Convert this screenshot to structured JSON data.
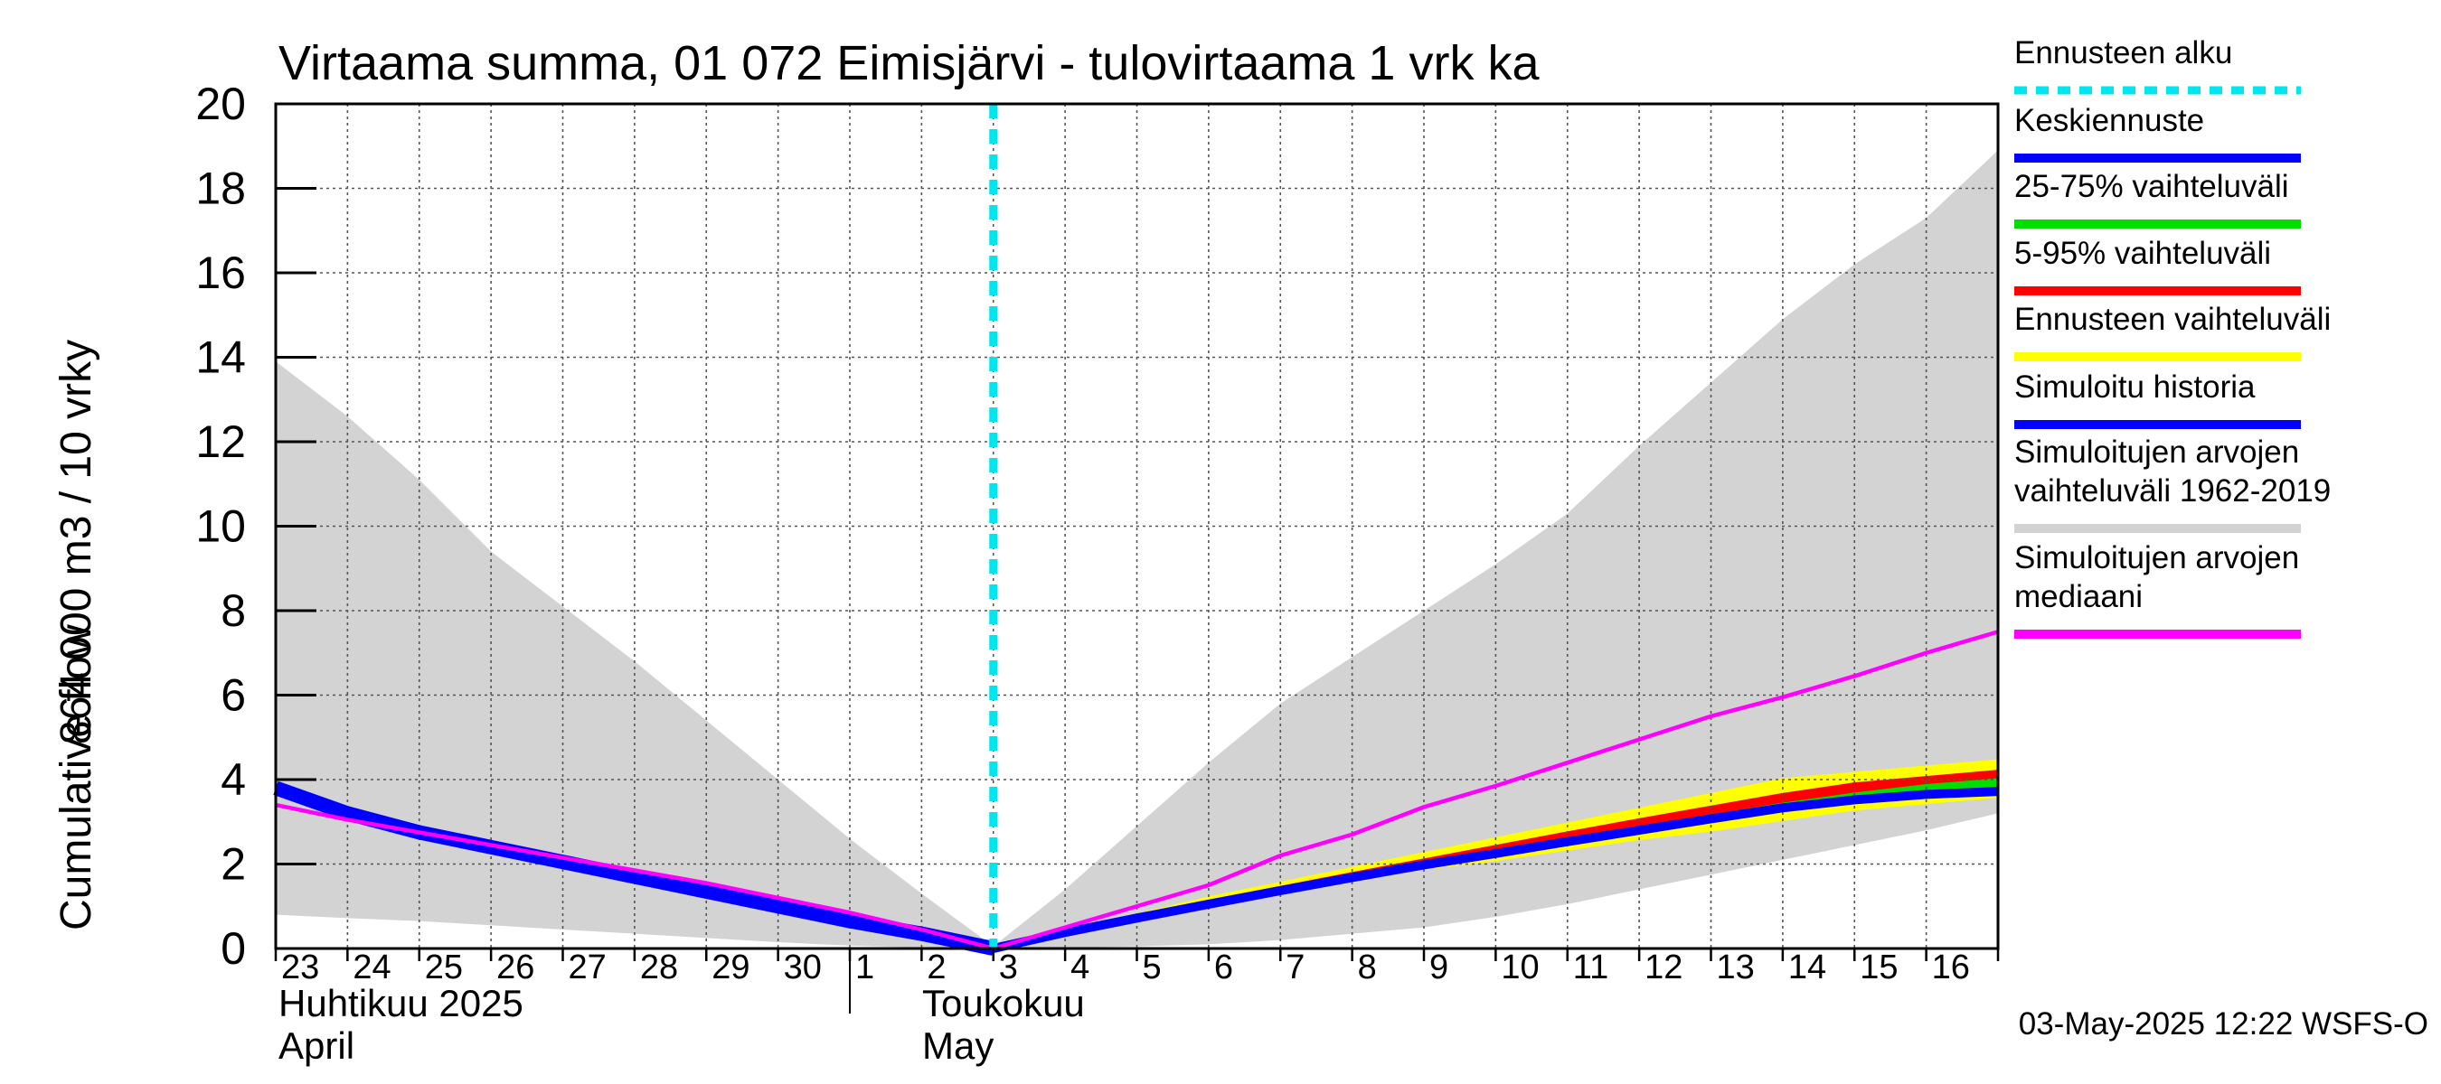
{
  "chart_data": {
    "type": "line",
    "title": "Virtaama summa, 01 072 Eimisjärvi - tulovirtaama 1 vrk ka",
    "ylabel_fi": "864 000 m3 / 10 vrky",
    "ylabel_en": "Cumulative flow",
    "ylim": [
      0,
      20
    ],
    "yticks": [
      0,
      2,
      4,
      6,
      8,
      10,
      12,
      14,
      16,
      18,
      20
    ],
    "xlim": [
      0,
      24
    ],
    "x_tick_labels": [
      "23",
      "24",
      "25",
      "26",
      "27",
      "28",
      "29",
      "30",
      "1",
      "2",
      "3",
      "4",
      "5",
      "6",
      "7",
      "8",
      "9",
      "10",
      "11",
      "12",
      "13",
      "14",
      "15",
      "16"
    ],
    "month_labels": [
      {
        "fi": "Huhtikuu  2025",
        "en": "April"
      },
      {
        "fi": "Toukokuu",
        "en": "May"
      }
    ],
    "forecast_start_x": 10,
    "grid": true,
    "timestamp": "03-May-2025 12:22 WSFS-O",
    "legend": [
      {
        "label": "Ennusteen alku",
        "color": "#00e5ee",
        "style": "dashed"
      },
      {
        "label": "Keskiennuste",
        "color": "#0000ff",
        "style": "solid"
      },
      {
        "label": "25-75% vaihteluväli",
        "color": "#00dd00",
        "style": "solid"
      },
      {
        "label": "5-95% vaihteluväli",
        "color": "#ff0000",
        "style": "solid"
      },
      {
        "label": "Ennusteen vaihteluväli",
        "color": "#ffff00",
        "style": "solid"
      },
      {
        "label": "Simuloitu historia",
        "color": "#0000ff",
        "style": "solid"
      },
      {
        "label": "Simuloitujen arvojen\nvaihteluväli 1962-2019",
        "color": "#d3d3d3",
        "style": "solid"
      },
      {
        "label": "Simuloitujen arvojen\nmediaani",
        "color": "#ff00ff",
        "style": "solid"
      }
    ],
    "series": {
      "hist_range_upper": {
        "x": [
          0,
          1,
          2,
          3,
          4,
          5,
          6,
          7,
          8,
          9,
          10,
          11,
          12,
          13,
          14,
          15,
          16,
          17,
          18,
          19,
          20,
          21,
          22,
          23,
          24
        ],
        "y": [
          13.9,
          12.6,
          11.1,
          9.4,
          8.1,
          6.8,
          5.4,
          4.0,
          2.6,
          1.3,
          0.05,
          1.4,
          2.9,
          4.4,
          5.8,
          6.9,
          8.0,
          9.1,
          10.3,
          11.9,
          13.4,
          14.9,
          16.2,
          17.3,
          18.9
        ]
      },
      "hist_range_lower": {
        "x": [
          0,
          1,
          2,
          3,
          4,
          5,
          6,
          7,
          8,
          9,
          10,
          11,
          12,
          13,
          14,
          15,
          16,
          17,
          18,
          19,
          20,
          21,
          22,
          23,
          24
        ],
        "y": [
          0.8,
          0.72,
          0.65,
          0.55,
          0.45,
          0.35,
          0.25,
          0.15,
          0.07,
          0.02,
          0.0,
          0.02,
          0.05,
          0.1,
          0.2,
          0.35,
          0.5,
          0.75,
          1.05,
          1.4,
          1.75,
          2.1,
          2.45,
          2.8,
          3.2
        ]
      },
      "median": {
        "x": [
          0,
          1,
          2,
          3,
          4,
          5,
          6,
          7,
          8,
          9,
          10,
          11,
          12,
          13,
          14,
          15,
          16,
          17,
          18,
          19,
          20,
          21,
          22,
          23,
          24
        ],
        "y": [
          3.4,
          3.05,
          2.75,
          2.45,
          2.15,
          1.85,
          1.55,
          1.2,
          0.85,
          0.45,
          0.0,
          0.5,
          1.0,
          1.5,
          2.2,
          2.7,
          3.35,
          3.85,
          4.4,
          4.95,
          5.5,
          5.95,
          6.45,
          7.0,
          7.5
        ]
      },
      "simulated_history": {
        "x": [
          0,
          1,
          2,
          3,
          4,
          5,
          6,
          7,
          8,
          9,
          10
        ],
        "y": [
          3.8,
          3.2,
          2.75,
          2.4,
          2.05,
          1.7,
          1.35,
          1.0,
          0.65,
          0.35,
          0.0
        ]
      },
      "forecast_range_upper": {
        "x": [
          10,
          11,
          12,
          13,
          14,
          15,
          16,
          17,
          18,
          19,
          20,
          21,
          22,
          23,
          24
        ],
        "y": [
          0.0,
          0.42,
          0.8,
          1.2,
          1.55,
          1.9,
          2.25,
          2.6,
          2.95,
          3.3,
          3.65,
          4.0,
          4.15,
          4.3,
          4.45
        ]
      },
      "forecast_range_lower": {
        "x": [
          10,
          11,
          12,
          13,
          14,
          15,
          16,
          17,
          18,
          19,
          20,
          21,
          22,
          23,
          24
        ],
        "y": [
          0.0,
          0.36,
          0.7,
          1.0,
          1.3,
          1.6,
          1.9,
          2.1,
          2.35,
          2.6,
          2.8,
          3.05,
          3.3,
          3.45,
          3.6
        ]
      },
      "p5_95_upper": {
        "x": [
          10,
          11,
          12,
          13,
          14,
          15,
          16,
          17,
          18,
          19,
          20,
          21,
          22,
          23,
          24
        ],
        "y": [
          0.0,
          0.4,
          0.76,
          1.12,
          1.45,
          1.78,
          2.1,
          2.42,
          2.74,
          3.05,
          3.35,
          3.65,
          3.9,
          4.05,
          4.2
        ]
      },
      "p5_95_lower": {
        "x": [
          10,
          11,
          12,
          13,
          14,
          15,
          16,
          17,
          18,
          19,
          20,
          21,
          22,
          23,
          24
        ],
        "y": [
          0.0,
          0.37,
          0.72,
          1.04,
          1.35,
          1.65,
          1.96,
          2.22,
          2.5,
          2.76,
          3.02,
          3.28,
          3.48,
          3.62,
          3.72
        ]
      },
      "p25_75_upper": {
        "x": [
          10,
          11,
          12,
          13,
          14,
          15,
          16,
          17,
          18,
          19,
          20,
          21,
          22,
          23,
          24
        ],
        "y": [
          0.0,
          0.38,
          0.74,
          1.08,
          1.4,
          1.71,
          2.02,
          2.3,
          2.58,
          2.86,
          3.14,
          3.42,
          3.66,
          3.86,
          4.0
        ]
      },
      "p25_75_lower": {
        "x": [
          10,
          11,
          12,
          13,
          14,
          15,
          16,
          17,
          18,
          19,
          20,
          21,
          22,
          23,
          24
        ],
        "y": [
          0.0,
          0.37,
          0.72,
          1.05,
          1.36,
          1.67,
          1.98,
          2.25,
          2.52,
          2.79,
          3.06,
          3.32,
          3.52,
          3.66,
          3.74
        ]
      },
      "mean_forecast": {
        "x": [
          10,
          11,
          12,
          13,
          14,
          15,
          16,
          17,
          18,
          19,
          20,
          21,
          22,
          23,
          24
        ],
        "y": [
          0.0,
          0.38,
          0.72,
          1.05,
          1.37,
          1.68,
          1.98,
          2.25,
          2.53,
          2.8,
          3.07,
          3.33,
          3.52,
          3.65,
          3.72
        ]
      }
    }
  }
}
